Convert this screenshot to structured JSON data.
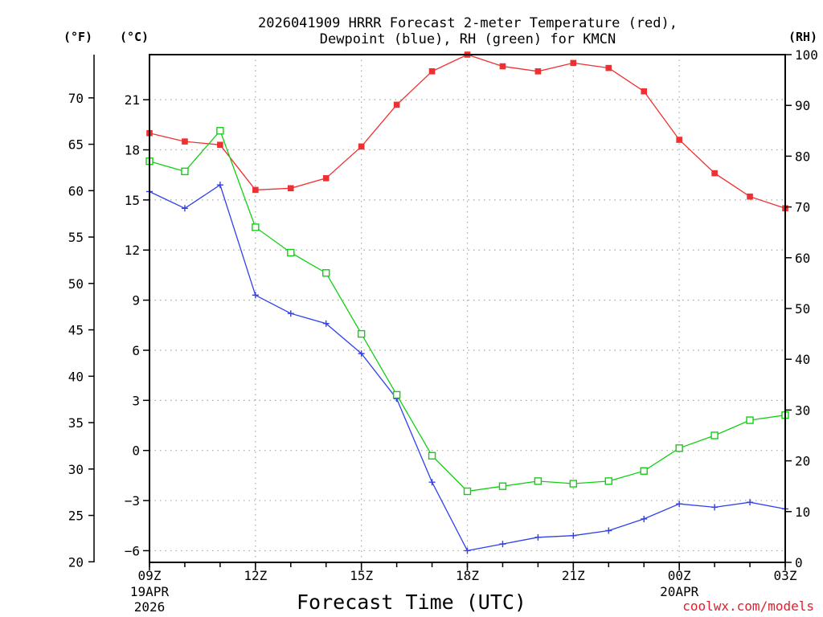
{
  "chart_data": {
    "type": "line",
    "title_line1": "2026041909 HRRR Forecast 2-meter Temperature (red),",
    "title_line2": "Dewpoint (blue), RH (green) for KMCN",
    "xlabel": "Forecast Time (UTC)",
    "credit": "coolwx.com/models",
    "units": {
      "fahrenheit": "(°F)",
      "celsius": "(°C)",
      "rh": "(RH)"
    },
    "x_hours": [
      9,
      10,
      11,
      12,
      13,
      14,
      15,
      16,
      17,
      18,
      19,
      20,
      21,
      22,
      23,
      24,
      25,
      26,
      27
    ],
    "x_ticks": [
      {
        "hour": 9,
        "label": "09Z",
        "sub1": "19APR",
        "sub2": "2026"
      },
      {
        "hour": 12,
        "label": "12Z"
      },
      {
        "hour": 15,
        "label": "15Z"
      },
      {
        "hour": 18,
        "label": "18Z"
      },
      {
        "hour": 21,
        "label": "21Z"
      },
      {
        "hour": 24,
        "label": "00Z",
        "sub1": "20APR"
      },
      {
        "hour": 27,
        "label": "03Z"
      }
    ],
    "xlim": [
      9,
      27
    ],
    "celsius_axis": {
      "ylim": [
        -6.7,
        23.7
      ],
      "ticks": [
        -6,
        -3,
        0,
        3,
        6,
        9,
        12,
        15,
        18,
        21
      ]
    },
    "fahrenheit_ticks": [
      20,
      25,
      30,
      35,
      40,
      45,
      50,
      55,
      60,
      65,
      70
    ],
    "rh_axis": {
      "ylim": [
        0,
        100
      ],
      "ticks": [
        0,
        10,
        20,
        30,
        40,
        50,
        60,
        70,
        80,
        90,
        100
      ]
    },
    "series": [
      {
        "name": "2-meter Temperature",
        "axis": "celsius",
        "color": "#f03030",
        "marker": "filled-square",
        "values": [
          19.0,
          18.5,
          18.3,
          15.6,
          15.7,
          16.3,
          18.2,
          20.7,
          22.7,
          23.7,
          23.0,
          22.7,
          23.2,
          22.9,
          21.5,
          18.6,
          16.6,
          15.2,
          14.5
        ]
      },
      {
        "name": "Dewpoint",
        "axis": "celsius",
        "color": "#3040ee",
        "marker": "plus",
        "values": [
          15.5,
          14.5,
          15.9,
          9.3,
          8.2,
          7.6,
          5.8,
          3.1,
          -1.9,
          -6.0,
          -5.6,
          -5.2,
          -5.1,
          -4.8,
          -4.1,
          -3.2,
          -3.4,
          -3.1,
          -3.5
        ]
      },
      {
        "name": "RH",
        "axis": "rh",
        "color": "#10d010",
        "marker": "open-square",
        "values": [
          79,
          77,
          85,
          66,
          61,
          57,
          45,
          33,
          21,
          14,
          15,
          16,
          15.5,
          16,
          18,
          22.5,
          25,
          28,
          29
        ]
      }
    ]
  }
}
